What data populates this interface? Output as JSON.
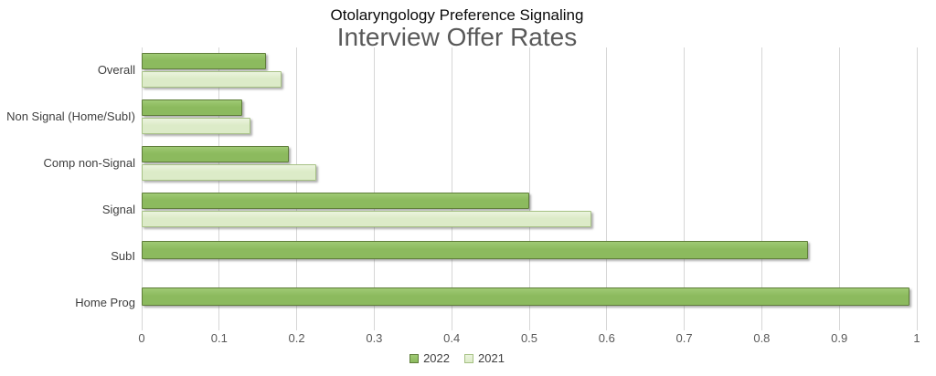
{
  "chart_data": {
    "type": "bar",
    "orientation": "horizontal",
    "title": "Otolaryngology Preference Signaling",
    "subtitle": "Interview Offer Rates",
    "categories": [
      "Overall",
      "Non Signal (Home/SubI)",
      "Comp non-Signal",
      "Signal",
      "SubI",
      "Home Prog"
    ],
    "series": [
      {
        "name": "2022",
        "values": [
          0.16,
          0.13,
          0.19,
          0.5,
          0.86,
          0.99
        ],
        "fill": "#8cba5e",
        "fill_top": "#9fca74",
        "border": "#5f7d3a"
      },
      {
        "name": "2021",
        "values": [
          0.18,
          0.14,
          0.225,
          0.58,
          null,
          null
        ],
        "fill": "#dcebc8",
        "fill_top": "#ebf4de",
        "border": "#a6c184"
      }
    ],
    "xlim": [
      0,
      1
    ],
    "xticks": [
      0,
      0.1,
      0.2,
      0.3,
      0.4,
      0.5,
      0.6,
      0.7,
      0.8,
      0.9,
      1
    ],
    "xtick_labels": [
      "0",
      "0.1",
      "0.2",
      "0.3",
      "0.4",
      "0.5",
      "0.6",
      "0.7",
      "0.8",
      "0.9",
      "1"
    ],
    "legend_position": "bottom",
    "grid": "vertical",
    "gridline_color": "#d6d6d6",
    "title_color": "#0a0a0a",
    "subtitle_color": "#595959"
  }
}
